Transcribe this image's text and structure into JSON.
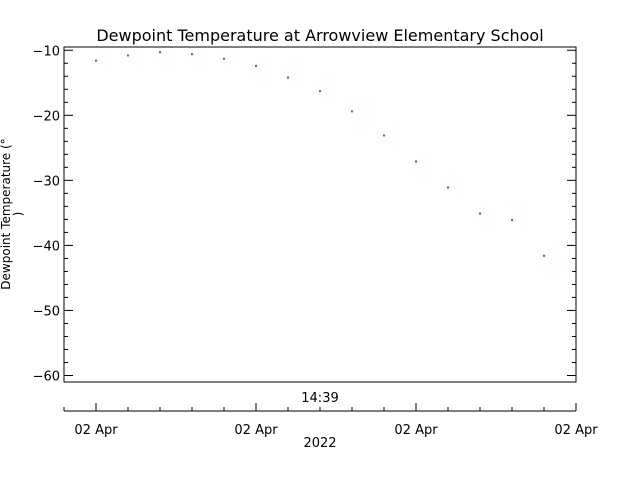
{
  "chart_data": {
    "type": "scatter",
    "title": "Dewpoint Temperature at Arrowview Elementary School",
    "ylabel_line1": "Dewpoint Temperature (°",
    "ylabel_line2": ")",
    "ylim": [
      -61,
      -9.5
    ],
    "yticks": [
      {
        "value": -10,
        "label": "−10"
      },
      {
        "value": -20,
        "label": "−20"
      },
      {
        "value": -30,
        "label": "−30"
      },
      {
        "value": -40,
        "label": "−40"
      },
      {
        "value": -50,
        "label": "−50"
      },
      {
        "value": -60,
        "label": "−60"
      }
    ],
    "top_time_label": "14:39",
    "xticks": [
      "02 Apr",
      "02 Apr",
      "02 Apr",
      "02 Apr"
    ],
    "xlabel_year": "2022",
    "grid": false,
    "point_color": "#1f6fd6",
    "series": [
      {
        "values": [
          -11.6,
          -10.8,
          -10.3,
          -10.6,
          -11.3,
          -12.4,
          -14.2,
          -16.3,
          -19.4,
          -23.1,
          -27.1,
          -31.1,
          -35.1,
          -36.1,
          -41.6
        ]
      }
    ]
  }
}
